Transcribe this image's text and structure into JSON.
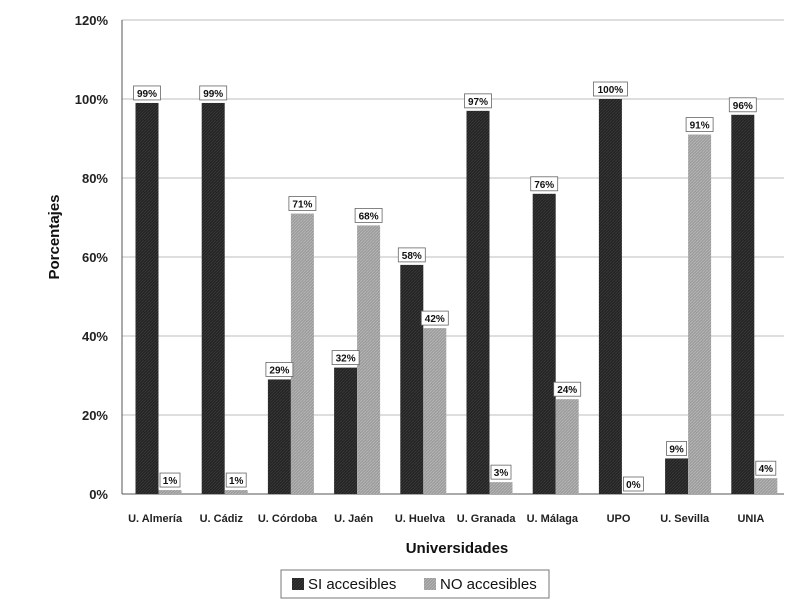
{
  "chart_data": {
    "type": "bar",
    "title": "",
    "xlabel": "Universidades",
    "ylabel": "Porcentajes",
    "ylim": [
      0,
      120
    ],
    "yticks": [
      "0%",
      "20%",
      "40%",
      "60%",
      "80%",
      "100%",
      "120%"
    ],
    "categories": [
      "U. Almería",
      "U. Cádiz",
      "U. Córdoba",
      "U. Jaén",
      "U. Huelva",
      "U. Granada",
      "U. Málaga",
      "UPO",
      "U. Sevilla",
      "UNIA"
    ],
    "series": [
      {
        "name": "SI accesibles",
        "values": [
          99,
          99,
          29,
          32,
          58,
          97,
          76,
          100,
          9,
          96
        ],
        "labels": [
          "99%",
          "99%",
          "29%",
          "32%",
          "58%",
          "97%",
          "76%",
          "100%",
          "9%",
          "96%"
        ],
        "color": "#1e1e1e"
      },
      {
        "name": "NO accesibles",
        "values": [
          1,
          1,
          71,
          68,
          42,
          3,
          24,
          0,
          91,
          4
        ],
        "labels": [
          "1%",
          "1%",
          "71%",
          "68%",
          "42%",
          "3%",
          "24%",
          "0%",
          "91%",
          "4%"
        ],
        "color": "#9a9a9a"
      }
    ],
    "grid": true,
    "legend_position": "bottom"
  }
}
